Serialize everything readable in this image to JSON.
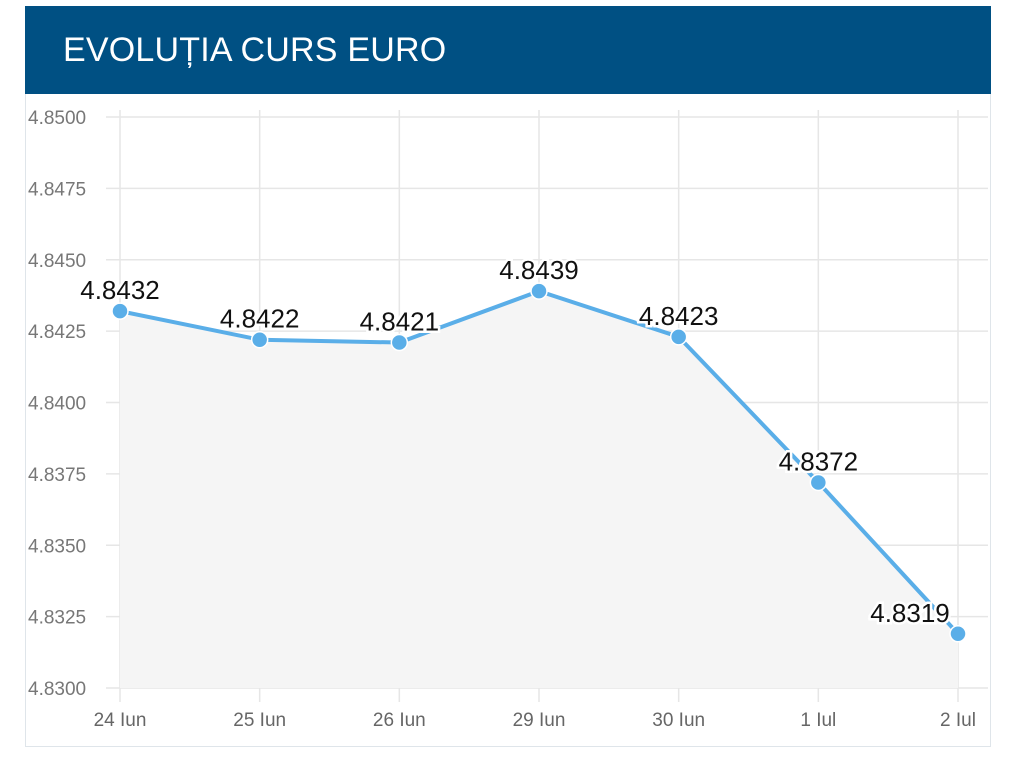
{
  "header": {
    "title": "EVOLUȚIA CURS EURO",
    "background": "#005083"
  },
  "chart_data": {
    "type": "area",
    "categories": [
      "24 Iun",
      "25 Iun",
      "26 Iun",
      "29 Iun",
      "30 Iun",
      "1 Iul",
      "2 Iul"
    ],
    "values": [
      4.8432,
      4.8422,
      4.8421,
      4.8439,
      4.8423,
      4.8372,
      4.8319
    ],
    "data_labels": [
      "4.8432",
      "4.8422",
      "4.8421",
      "4.8439",
      "4.8423",
      "4.8372",
      "4.8319"
    ],
    "y_ticks": [
      "4.8500",
      "4.8475",
      "4.8450",
      "4.8425",
      "4.8400",
      "4.8375",
      "4.8350",
      "4.8325",
      "4.8300"
    ],
    "y_tick_values": [
      4.85,
      4.8475,
      4.845,
      4.8425,
      4.84,
      4.8375,
      4.835,
      4.8325,
      4.83
    ],
    "ylim": [
      4.83,
      4.85
    ],
    "grid": true,
    "line_color": "#5aaee8",
    "fill_color": "#f5f5f5",
    "grid_color": "#e6e6e6"
  }
}
